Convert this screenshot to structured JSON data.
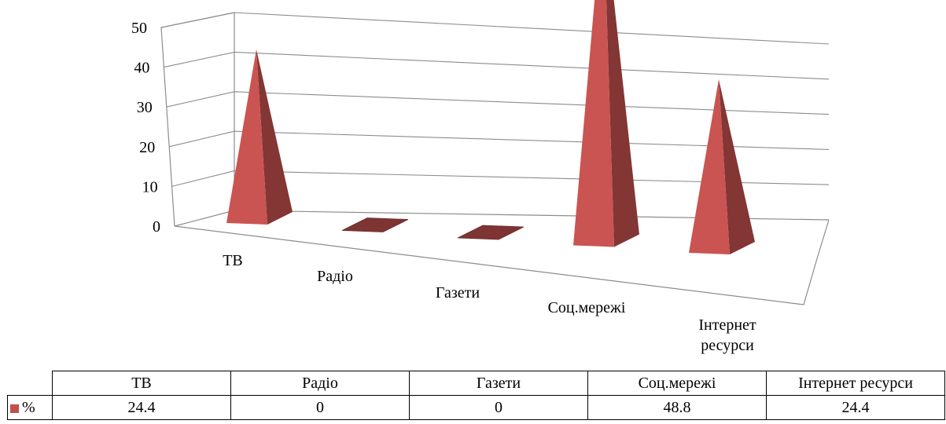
{
  "chart_data": {
    "type": "bar",
    "style": "3d-pyramid",
    "categories": [
      "ТВ",
      "Радіо",
      "Газети",
      "Соц.мережі",
      "Інтернет ресурси"
    ],
    "category_axis_labels": [
      [
        "ТВ"
      ],
      [
        "Радіо"
      ],
      [
        "Газети"
      ],
      [
        "Соц.мережі"
      ],
      [
        "Інтернет",
        "ресурси"
      ]
    ],
    "series": [
      {
        "name": "%",
        "values": [
          24.4,
          0,
          0,
          48.8,
          24.4
        ],
        "color": "#c0504d"
      }
    ],
    "ylim": [
      0,
      50
    ],
    "yticks": [
      "0",
      "10",
      "20",
      "30",
      "40",
      "50"
    ],
    "grid": true,
    "legend": "data-table",
    "data_table": {
      "headers": [
        "ТВ",
        "Радіо",
        "Газети",
        "Соц.мережі",
        "Інтернет ресурси"
      ],
      "row_label": "%",
      "values": [
        "24.4",
        "0",
        "0",
        "48.8",
        "24.4"
      ]
    }
  }
}
